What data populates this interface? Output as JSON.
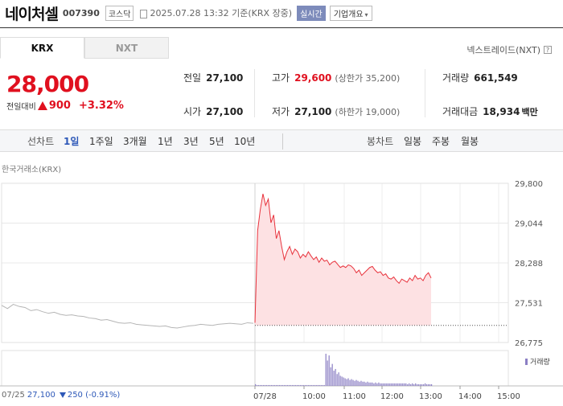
{
  "header": {
    "stock_name": "네이처셀",
    "stock_code": "007390",
    "market": "코스닥",
    "datetime": "2025.07.28 13:32 기준(KRX 장중)",
    "realtime": "실시간",
    "company_button": "기업개요"
  },
  "tabs": {
    "krx": "KRX",
    "nxt": "NXT"
  },
  "nxt_link": "넥스트레이드(NXT)",
  "quote": {
    "price": "28,000",
    "change_label": "전일대비",
    "change_amount": "900",
    "change_percent": "+3.32%"
  },
  "stats": {
    "prev_close_label": "전일",
    "prev_close": "27,100",
    "high_label": "고가",
    "high": "29,600",
    "upper_limit": "(상한가 35,200)",
    "volume_label": "거래량",
    "volume": "661,549",
    "open_label": "시가",
    "open": "27,100",
    "low_label": "저가",
    "low": "27,100",
    "lower_limit": "(하한가 19,000)",
    "value_label": "거래대금",
    "value": "18,934",
    "value_unit": "백만"
  },
  "period_bar": {
    "line_chart_label": "선차트",
    "periods": [
      "1일",
      "1주일",
      "3개월",
      "1년",
      "3년",
      "5년",
      "10년"
    ],
    "active_period": "1일",
    "candle_label": "봉차트",
    "candle_periods": [
      "일봉",
      "주봉",
      "월봉"
    ]
  },
  "chart_data": {
    "type": "line",
    "exchange_label": "한국거래소(KRX)",
    "volume_label": "거래량",
    "y_ticks": [
      "29,800",
      "29,044",
      "28,288",
      "27,531",
      "26,775"
    ],
    "ylim": [
      26775,
      29800
    ],
    "x_ticks": [
      "07/25",
      "07/28",
      "10:00",
      "11:00",
      "12:00",
      "13:00",
      "14:00",
      "15:00"
    ],
    "prev_close": 27100,
    "colors": {
      "today": "#e8323c",
      "fill": "#fde1e3",
      "prev_day": "#b5b5b5",
      "volume": "#8b7fc4"
    },
    "series": [
      {
        "name": "07/25",
        "values": [
          27480,
          27420,
          27500,
          27460,
          27440,
          27380,
          27400,
          27360,
          27330,
          27350,
          27310,
          27290,
          27300,
          27280,
          27270,
          27240,
          27230,
          27200,
          27210,
          27180,
          27150,
          27140,
          27150,
          27120,
          27110,
          27100,
          27090,
          27080,
          27090,
          27060,
          27050,
          27070,
          27090,
          27100,
          27120,
          27110,
          27100,
          27120,
          27130,
          27140,
          27130,
          27120,
          27150,
          27140
        ]
      },
      {
        "name": "07/28",
        "values": [
          27150,
          28900,
          29300,
          29600,
          29380,
          29500,
          29050,
          29200,
          28750,
          28900,
          28600,
          28350,
          28500,
          28600,
          28450,
          28550,
          28500,
          28380,
          28450,
          28400,
          28500,
          28420,
          28350,
          28400,
          28300,
          28380,
          28320,
          28340,
          28250,
          28300,
          28320,
          28260,
          28200,
          28230,
          28200,
          28250,
          28230,
          28180,
          28100,
          28150,
          28050,
          28100,
          28150,
          28200,
          28220,
          28150,
          28100,
          28120,
          28050,
          28080,
          28000,
          27980,
          28020,
          27950,
          27900,
          27980,
          27950,
          27920,
          28000,
          27950,
          28050,
          27980,
          28000,
          27950,
          28050,
          28100,
          28000
        ]
      }
    ],
    "volume_values": [
      2,
      1,
      1,
      1,
      1,
      1,
      1,
      1,
      1,
      1,
      1,
      1,
      1,
      1,
      1,
      1,
      1,
      1,
      1,
      1,
      1,
      1,
      1,
      1,
      1,
      1,
      1,
      1,
      1,
      1,
      1,
      1,
      1,
      1,
      1,
      1,
      1,
      1,
      1,
      1,
      1,
      1,
      1,
      1,
      38,
      30,
      36,
      22,
      26,
      18,
      20,
      14,
      16,
      12,
      11,
      10,
      9,
      8,
      9,
      7,
      8,
      7,
      6,
      7,
      6,
      5,
      6,
      5,
      5,
      4,
      5,
      4,
      4,
      4,
      3,
      4,
      3,
      4,
      3,
      3,
      3,
      3,
      3,
      3,
      3,
      3,
      3,
      3,
      3,
      3,
      3,
      3,
      3,
      3,
      3,
      2,
      3,
      2,
      3,
      2,
      3,
      2,
      2,
      2,
      2,
      2,
      3,
      2,
      2,
      2,
      2
    ]
  },
  "footer": {
    "prev_date": "07/25",
    "prev_price": "27,100",
    "prev_change": "250 (-0.91%)"
  }
}
